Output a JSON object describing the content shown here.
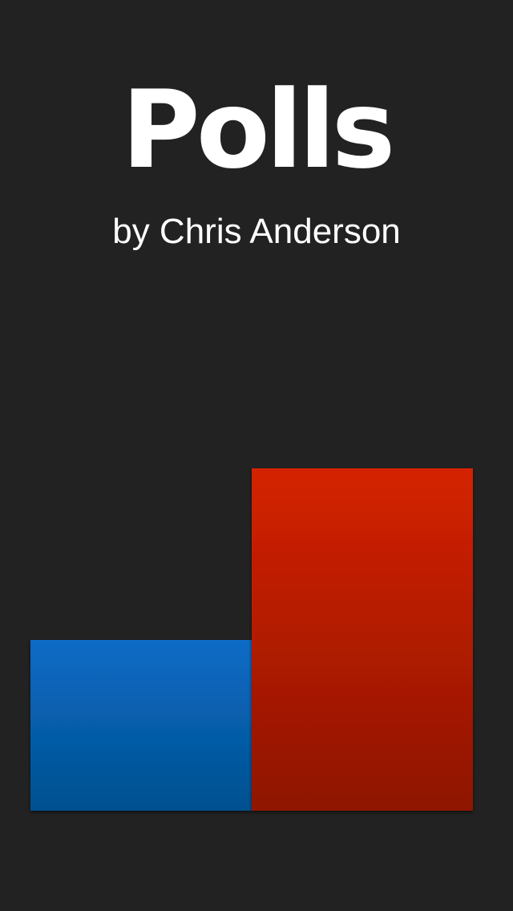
{
  "app": {
    "title": "Polls",
    "subtitle": "by Chris Anderson"
  },
  "chart_data": {
    "type": "bar",
    "categories": [
      "",
      ""
    ],
    "values": [
      213,
      427
    ],
    "ylim": [
      0,
      427
    ],
    "grid": false,
    "colors": {
      "left_top": "#0a6bc6",
      "left_bottom": "#03508f",
      "right_top": "#d42200",
      "right_bottom": "#8e1400",
      "background": "#222222"
    }
  }
}
